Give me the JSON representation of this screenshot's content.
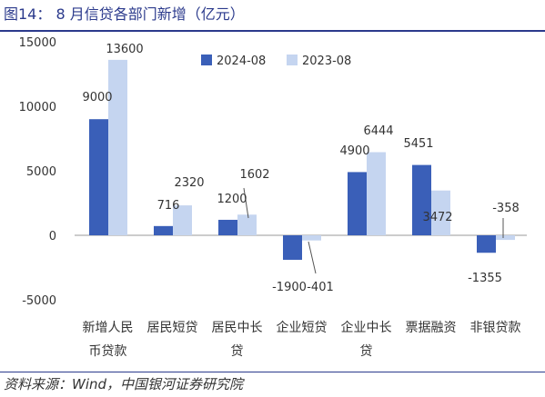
{
  "title": "图14：  8 月信贷各部门新增（亿元）",
  "source": "资料来源：Wind，中国银河证券研究院",
  "colors": {
    "series_2024": "#3a5fb8",
    "series_2023": "#c5d5f0",
    "axis": "#999999",
    "text": "#333333",
    "brand": "#2b3a8c"
  },
  "chart_data": {
    "type": "bar",
    "title": "8 月信贷各部门新增（亿元）",
    "categories": [
      "新增人民币贷款",
      "居民短贷",
      "居民中长贷",
      "企业短贷",
      "企业中长贷",
      "票据融资",
      "非银贷款"
    ],
    "category_lines": [
      [
        "新增人民",
        "币贷款"
      ],
      [
        "居民短贷"
      ],
      [
        "居民中长",
        "贷"
      ],
      [
        "企业短贷"
      ],
      [
        "企业中长",
        "贷"
      ],
      [
        "票据融资"
      ],
      [
        "非银贷款"
      ]
    ],
    "series": [
      {
        "name": "2024-08",
        "values": [
          9000,
          716,
          1200,
          -1900,
          4900,
          5451,
          -1355
        ]
      },
      {
        "name": "2023-08",
        "values": [
          13600,
          2320,
          1602,
          -401,
          6444,
          3472,
          -358
        ]
      }
    ],
    "value_labels": [
      [
        "9000",
        "716",
        "1200",
        "-1900",
        "4900",
        "5451",
        "-1355"
      ],
      [
        "13600",
        "2320",
        "1602",
        "-401",
        "6444",
        "3472",
        "-358"
      ]
    ],
    "yticks": [
      "15000",
      "10000",
      "5000",
      "0",
      "-5000"
    ],
    "ytick_values": [
      15000,
      10000,
      5000,
      0,
      -5000
    ],
    "ylim": [
      -5000,
      15000
    ],
    "legend": "top-center",
    "grid": false,
    "xlabel": "",
    "ylabel": ""
  }
}
